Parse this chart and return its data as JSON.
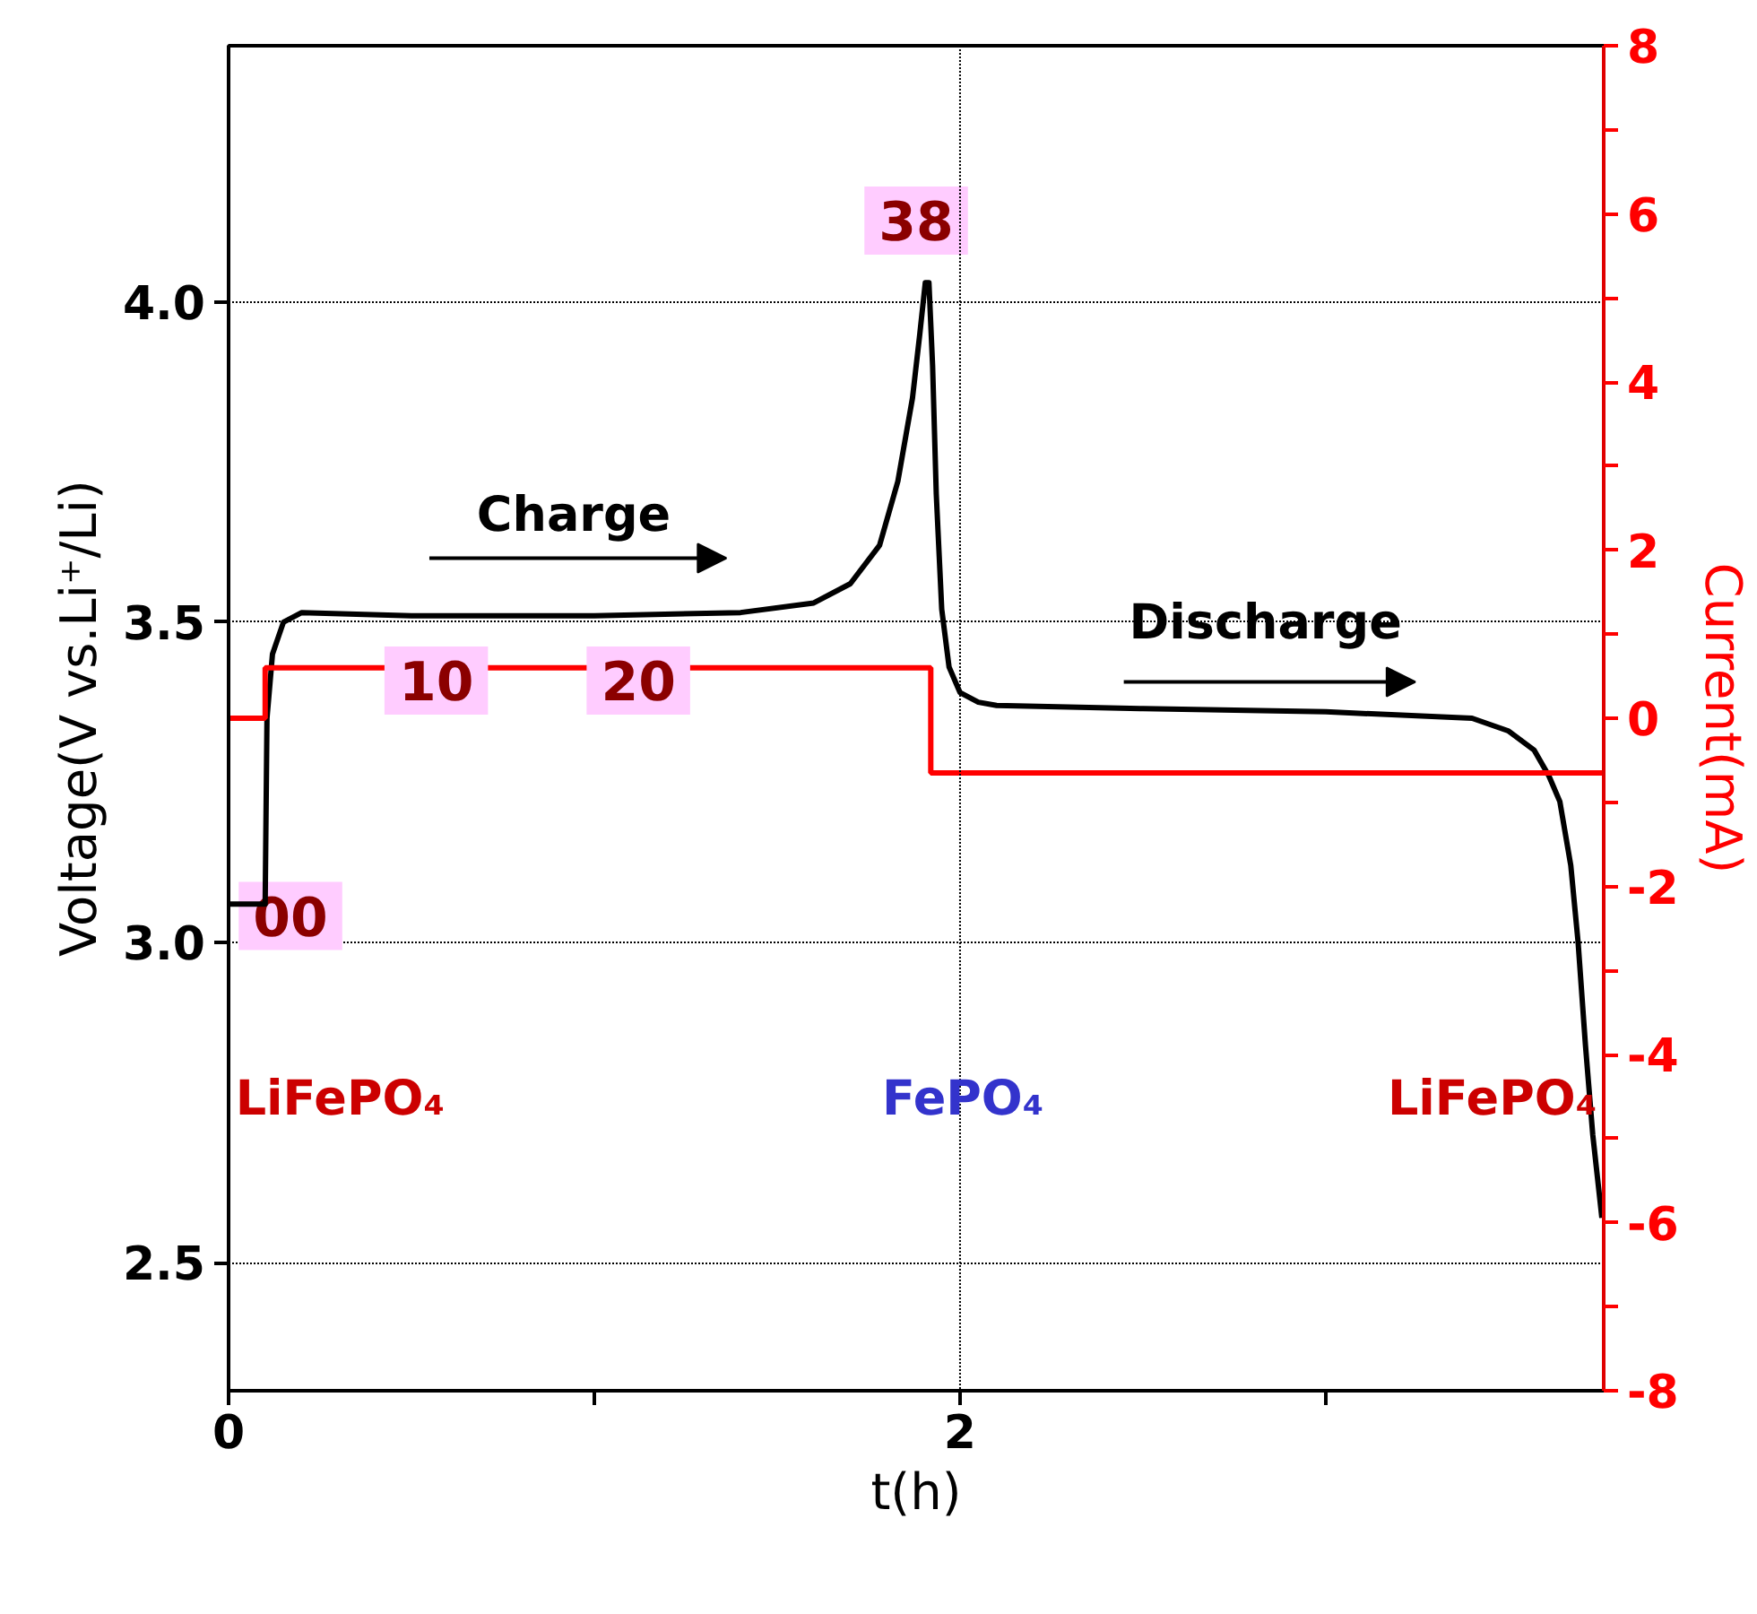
{
  "chart_data": {
    "type": "line",
    "xlabel": "t(h)",
    "ylabel": "Voltage(V vs.Li⁺/Li)",
    "y2label": "Current(mA)",
    "xlim": [
      0,
      3.76
    ],
    "xticks": [
      0,
      {
        "value": 1,
        "label": null
      },
      2,
      {
        "value": 3,
        "label": null
      }
    ],
    "ylim": [
      2.3,
      4.4
    ],
    "yticks": [
      2.5,
      {
        "value": 3,
        "label": "3.0"
      },
      3.5,
      {
        "value": 4,
        "label": "4.0"
      }
    ],
    "y2lim": [
      -8,
      8
    ],
    "y2ticks": [
      -8,
      {
        "value": -7,
        "label": null
      },
      -6,
      {
        "value": -5,
        "label": null
      },
      -4,
      {
        "value": -3,
        "label": null
      },
      -2,
      {
        "value": -1,
        "label": null
      },
      0,
      {
        "value": 1,
        "label": null
      },
      2,
      {
        "value": 3,
        "label": null
      },
      4,
      {
        "value": 5,
        "label": null
      },
      6,
      {
        "value": 7,
        "label": null
      },
      8
    ],
    "grid": "y",
    "ref_lines": [
      {
        "axis": "x",
        "value": 2,
        "line_style": "dotted"
      }
    ],
    "series": [
      {
        "color": "#000000",
        "x": [
          0,
          0.1,
          0.105,
          0.12,
          0.15,
          0.2,
          0.5,
          1.0,
          1.4,
          1.6,
          1.7,
          1.78,
          1.83,
          1.87,
          1.89,
          1.905,
          1.915,
          1.925,
          1.935,
          1.95,
          1.97,
          2.0,
          2.05,
          2.1,
          2.5,
          3.0,
          3.4,
          3.5,
          3.57,
          3.61,
          3.64,
          3.67,
          3.69,
          3.71,
          3.73,
          3.755
        ],
        "values": [
          3.06,
          3.06,
          3.35,
          3.45,
          3.5,
          3.515,
          3.51,
          3.51,
          3.515,
          3.53,
          3.56,
          3.62,
          3.72,
          3.85,
          3.95,
          4.03,
          4.03,
          3.9,
          3.7,
          3.52,
          3.43,
          3.39,
          3.375,
          3.37,
          3.365,
          3.36,
          3.35,
          3.33,
          3.3,
          3.26,
          3.22,
          3.12,
          3.0,
          2.84,
          2.7,
          2.57
        ]
      },
      {
        "type": "step",
        "axis": "y2",
        "color": "#ff0000",
        "x": [
          0,
          0.1,
          1.92,
          3.76
        ],
        "values": [
          0,
          0.6,
          -0.65,
          -0.65
        ]
      }
    ],
    "annotations": [
      "00",
      "10",
      "20",
      "38",
      "Charge",
      "Discharge",
      "LiFePO₄",
      "FePO₄",
      "LiFePO₄"
    ]
  }
}
